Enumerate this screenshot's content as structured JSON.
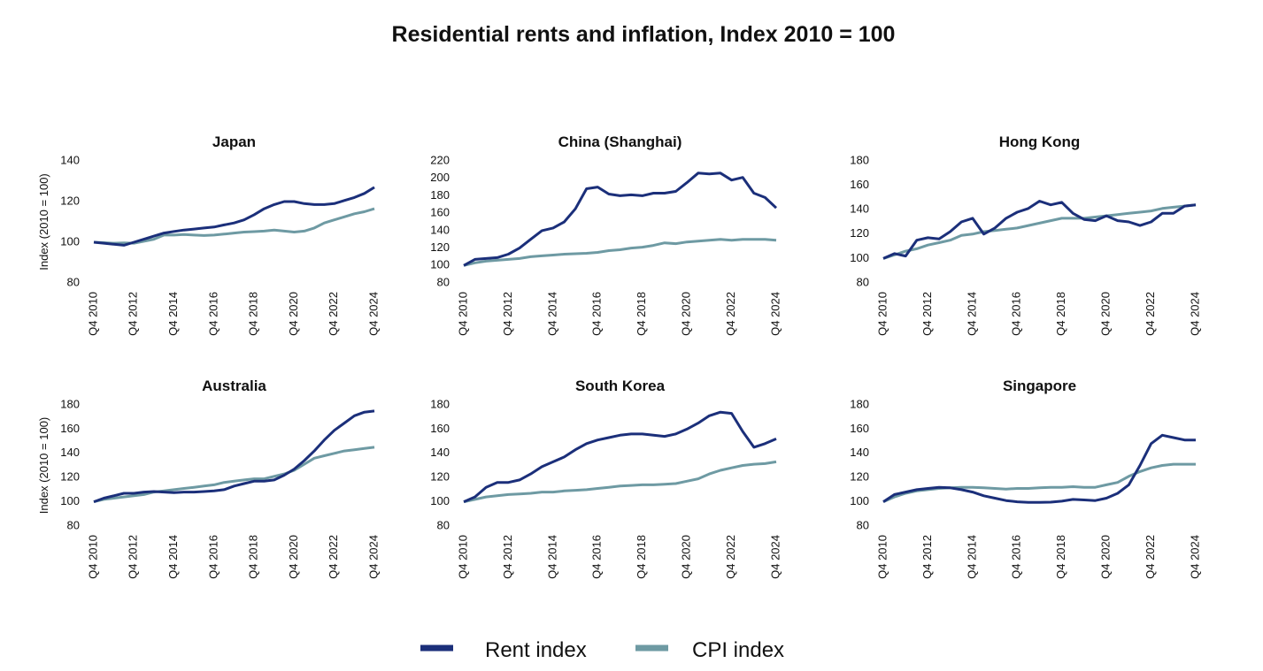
{
  "title": "Residential rents and inflation, Index 2010 = 100",
  "chart_data": [
    {
      "type": "line",
      "title": "Japan",
      "ylabel": "Index (2010 = 100)",
      "categories": [
        "Q4 2010",
        null,
        null,
        null,
        "Q4 2012",
        null,
        null,
        null,
        "Q4 2014",
        null,
        null,
        null,
        "Q4 2016",
        null,
        null,
        null,
        "Q4 2018",
        null,
        null,
        null,
        "Q4 2020",
        null,
        null,
        null,
        "Q4 2022",
        null,
        null,
        null,
        "Q4 2024"
      ],
      "series": [
        {
          "name": "Rent index",
          "color": "#1b2f7a",
          "values": [
            100,
            99.5,
            99,
            98.5,
            100,
            101.5,
            103,
            104.5,
            105.3,
            106,
            106.5,
            107,
            107.5,
            108.5,
            109.5,
            111,
            113.5,
            116.5,
            118.5,
            120,
            120,
            119,
            118.5,
            118.5,
            119,
            120.5,
            122,
            124,
            127
          ]
        },
        {
          "name": "CPI index",
          "color": "#6e9aa3",
          "values": [
            100,
            99.8,
            99.5,
            99.7,
            99.5,
            100.5,
            101.5,
            103.5,
            103.5,
            103.8,
            103.5,
            103.3,
            103.5,
            104,
            104.5,
            105,
            105.2,
            105.5,
            106,
            105.5,
            105,
            105.5,
            107,
            109.5,
            111,
            112.5,
            114,
            115,
            116.5
          ]
        }
      ],
      "ylim": [
        80,
        140
      ],
      "yticks": [
        80,
        100,
        120,
        140
      ]
    },
    {
      "type": "line",
      "title": "China (Shanghai)",
      "categories": [
        "Q4 2010",
        null,
        null,
        null,
        "Q4 2012",
        null,
        null,
        null,
        "Q4 2014",
        null,
        null,
        null,
        "Q4 2016",
        null,
        null,
        null,
        "Q4 2018",
        null,
        null,
        null,
        "Q4 2020",
        null,
        null,
        null,
        "Q4 2022",
        null,
        null,
        null,
        "Q4 2024"
      ],
      "series": [
        {
          "name": "Rent index",
          "color": "#1b2f7a",
          "values": [
            100,
            107,
            108,
            109,
            113,
            120,
            130,
            140,
            143,
            150,
            165,
            188,
            190,
            182,
            180,
            181,
            180,
            183,
            183,
            185,
            195,
            206,
            205,
            206,
            198,
            201,
            183,
            178,
            166
          ]
        },
        {
          "name": "CPI index",
          "color": "#6e9aa3",
          "values": [
            100,
            103,
            105,
            106,
            107,
            108,
            110,
            111,
            112,
            113,
            113.5,
            114,
            115,
            117,
            118,
            120,
            121,
            123,
            126,
            125,
            127,
            128,
            129,
            130,
            129,
            130,
            130,
            130,
            129
          ]
        }
      ],
      "ylim": [
        80,
        220
      ],
      "yticks": [
        80,
        100,
        120,
        140,
        160,
        180,
        200,
        220
      ]
    },
    {
      "type": "line",
      "title": "Hong Kong",
      "categories": [
        "Q4 2010",
        null,
        null,
        null,
        "Q4 2012",
        null,
        null,
        null,
        "Q4 2014",
        null,
        null,
        null,
        "Q4 2016",
        null,
        null,
        null,
        "Q4 2018",
        null,
        null,
        null,
        "Q4 2020",
        null,
        null,
        null,
        "Q4 2022",
        null,
        null,
        null,
        "Q4 2024"
      ],
      "series": [
        {
          "name": "Rent index",
          "color": "#1b2f7a",
          "values": [
            100,
            104,
            102,
            115,
            117,
            116,
            122,
            130,
            133,
            120,
            125,
            133,
            138,
            141,
            147,
            144,
            146,
            137,
            132,
            131,
            135,
            131,
            130,
            127,
            130,
            137,
            137,
            143,
            144
          ]
        },
        {
          "name": "CPI index",
          "color": "#6e9aa3",
          "values": [
            100,
            103,
            106,
            108,
            111,
            113,
            115,
            119,
            120,
            122,
            123,
            124,
            125,
            127,
            129,
            131,
            133,
            133,
            133,
            134,
            135,
            136,
            137,
            138,
            139,
            141,
            142,
            143,
            144
          ]
        }
      ],
      "ylim": [
        80,
        180
      ],
      "yticks": [
        80,
        100,
        120,
        140,
        160,
        180
      ]
    },
    {
      "type": "line",
      "title": "Australia",
      "ylabel": "Index (2010 = 100)",
      "categories": [
        "Q4 2010",
        null,
        null,
        null,
        "Q4 2012",
        null,
        null,
        null,
        "Q4 2014",
        null,
        null,
        null,
        "Q4 2016",
        null,
        null,
        null,
        "Q4 2018",
        null,
        null,
        null,
        "Q4 2020",
        null,
        null,
        null,
        "Q4 2022",
        null,
        null,
        null,
        "Q4 2024"
      ],
      "series": [
        {
          "name": "Rent index",
          "color": "#1b2f7a",
          "values": [
            100,
            103,
            105,
            107,
            107,
            108,
            108.5,
            108,
            107.5,
            108,
            108,
            108.5,
            109,
            110,
            113,
            115,
            117,
            117,
            118,
            122,
            127,
            134,
            142,
            151,
            159,
            165,
            171,
            174,
            175
          ]
        },
        {
          "name": "CPI index",
          "color": "#6e9aa3",
          "values": [
            100,
            102,
            103,
            104,
            105,
            106,
            108,
            109,
            110,
            111,
            112,
            113,
            114,
            116,
            117,
            118,
            119,
            119,
            121,
            123,
            126,
            131,
            136,
            138,
            140,
            142,
            143,
            144,
            145
          ]
        }
      ],
      "ylim": [
        80,
        180
      ],
      "yticks": [
        80,
        100,
        120,
        140,
        160,
        180
      ]
    },
    {
      "type": "line",
      "title": "South Korea",
      "categories": [
        "Q4 2010",
        null,
        null,
        null,
        "Q4 2012",
        null,
        null,
        null,
        "Q4 2014",
        null,
        null,
        null,
        "Q4 2016",
        null,
        null,
        null,
        "Q4 2018",
        null,
        null,
        null,
        "Q4 2020",
        null,
        null,
        null,
        "Q4 2022",
        null,
        null,
        null,
        "Q4 2024"
      ],
      "series": [
        {
          "name": "Rent index",
          "color": "#1b2f7a",
          "values": [
            100,
            104,
            112,
            116,
            116,
            118,
            123,
            129,
            133,
            137,
            143,
            148,
            151,
            153,
            155,
            156,
            156,
            155,
            154,
            156,
            160,
            165,
            171,
            174,
            173,
            158,
            145,
            148,
            152
          ]
        },
        {
          "name": "CPI index",
          "color": "#6e9aa3",
          "values": [
            100,
            102,
            104,
            105,
            106,
            106.5,
            107,
            108,
            108,
            109,
            109.5,
            110,
            111,
            112,
            113,
            113.5,
            114,
            114,
            114.5,
            115,
            117,
            119,
            123,
            126,
            128,
            130,
            131,
            131.5,
            133
          ]
        }
      ],
      "ylim": [
        80,
        180
      ],
      "yticks": [
        80,
        100,
        120,
        140,
        160,
        180
      ]
    },
    {
      "type": "line",
      "title": "Singapore",
      "categories": [
        "Q4 2010",
        null,
        null,
        null,
        "Q4 2012",
        null,
        null,
        null,
        "Q4 2014",
        null,
        null,
        null,
        "Q4 2016",
        null,
        null,
        null,
        "Q4 2018",
        null,
        null,
        null,
        "Q4 2020",
        null,
        null,
        null,
        "Q4 2022",
        null,
        null,
        null,
        "Q4 2024"
      ],
      "series": [
        {
          "name": "Rent index",
          "color": "#1b2f7a",
          "values": [
            100,
            106,
            108,
            110,
            111,
            112,
            111.5,
            110,
            108,
            105,
            103,
            101,
            100,
            99.5,
            99.5,
            99.7,
            100.5,
            102,
            101.5,
            101,
            103,
            107,
            114,
            130,
            148,
            155,
            153,
            151,
            151
          ]
        },
        {
          "name": "CPI index",
          "color": "#6e9aa3",
          "values": [
            100,
            104,
            107,
            109,
            110,
            111,
            111.5,
            112,
            112,
            111.5,
            111,
            110.5,
            111,
            111,
            111.5,
            112,
            112,
            112.5,
            112,
            112,
            114,
            116,
            121,
            125,
            128,
            130,
            131,
            131,
            131
          ]
        }
      ],
      "ylim": [
        80,
        180
      ],
      "yticks": [
        80,
        100,
        120,
        140,
        160,
        180
      ]
    }
  ]
}
